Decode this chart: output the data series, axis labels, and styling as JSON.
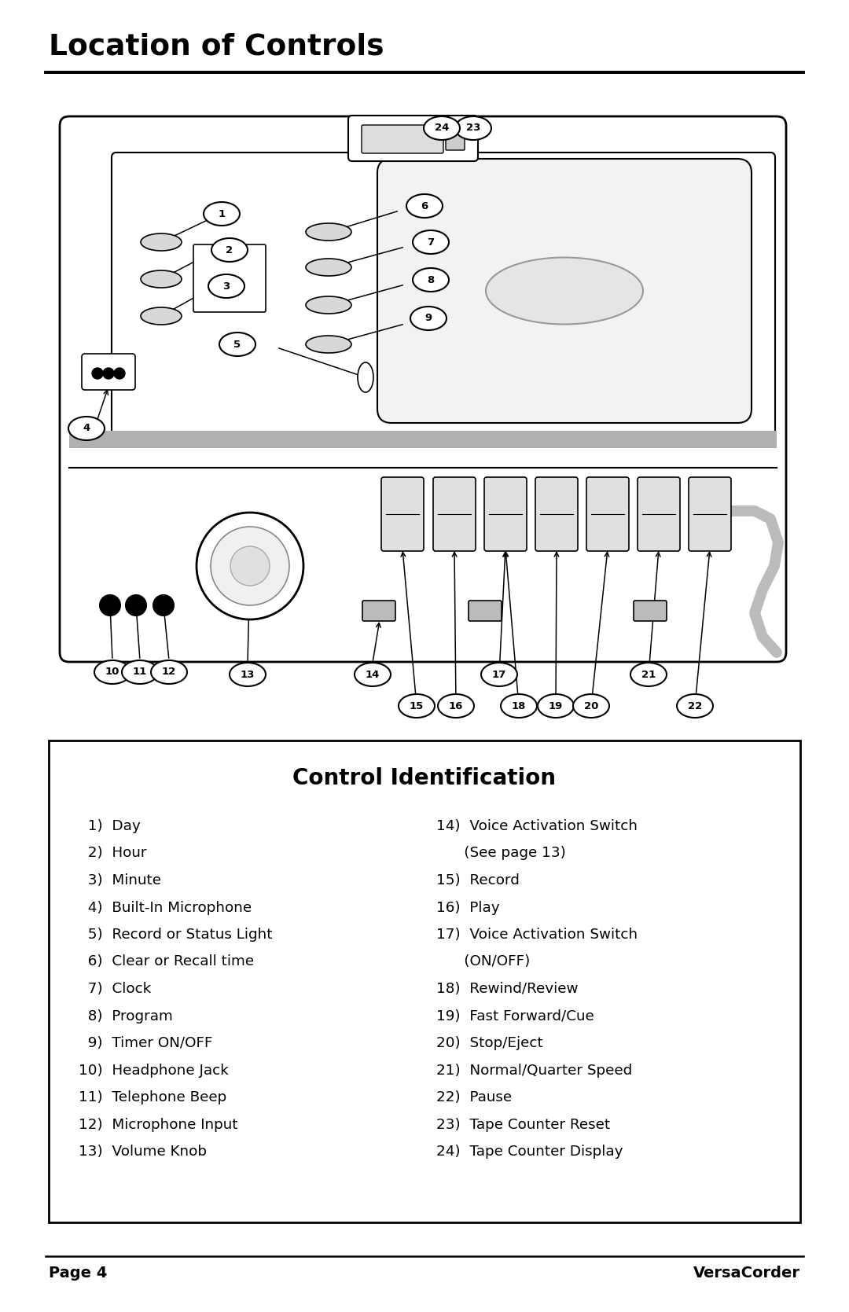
{
  "title": "Location of Controls",
  "section_title": "Control Identification",
  "page_label": "Page 4",
  "brand_label": "VersaCorder",
  "bg_color": "#ffffff",
  "text_color": "#000000",
  "left_col_items": [
    "  1)  Day",
    "  2)  Hour",
    "  3)  Minute",
    "  4)  Built-In Microphone",
    "  5)  Record or Status Light",
    "  6)  Clear or Recall time",
    "  7)  Clock",
    "  8)  Program",
    "  9)  Timer ON/OFF",
    "10)  Headphone Jack",
    "11)  Telephone Beep",
    "12)  Microphone Input",
    "13)  Volume Knob"
  ],
  "right_col_items": [
    [
      "14)  Voice Activation Switch",
      "      (See page 13)"
    ],
    [
      "15)  Record",
      ""
    ],
    [
      "16)  Play",
      ""
    ],
    [
      "17)  Voice Activation Switch",
      "      (ON/OFF)"
    ],
    [
      "18)  Rewind/Review",
      ""
    ],
    [
      "19)  Fast Forward/Cue",
      ""
    ],
    [
      "20)  Stop/Eject",
      ""
    ],
    [
      "21)  Normal/Quarter Speed",
      ""
    ],
    [
      "22)  Pause",
      ""
    ],
    [
      "23)  Tape Counter Reset",
      ""
    ],
    [
      "24)  Tape Counter Display",
      ""
    ]
  ]
}
